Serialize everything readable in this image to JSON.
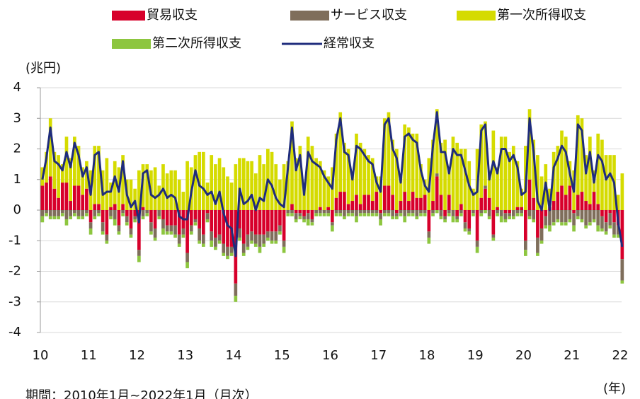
{
  "chart_data": {
    "type": "bar",
    "stacked": true,
    "y_unit": "(兆円)",
    "x_unit": "(年)",
    "note": "期間：2010年1月~2022年1月（月次）",
    "categories": [
      "10",
      null,
      null,
      null,
      null,
      null,
      null,
      null,
      null,
      null,
      null,
      null,
      "11",
      null,
      null,
      null,
      null,
      null,
      null,
      null,
      null,
      null,
      null,
      null,
      "12",
      null,
      null,
      null,
      null,
      null,
      null,
      null,
      null,
      null,
      null,
      null,
      "13",
      null,
      null,
      null,
      null,
      null,
      null,
      null,
      null,
      null,
      null,
      null,
      "14",
      null,
      null,
      null,
      null,
      null,
      null,
      null,
      null,
      null,
      null,
      null,
      "15",
      null,
      null,
      null,
      null,
      null,
      null,
      null,
      null,
      null,
      null,
      null,
      "16",
      null,
      null,
      null,
      null,
      null,
      null,
      null,
      null,
      null,
      null,
      null,
      "17",
      null,
      null,
      null,
      null,
      null,
      null,
      null,
      null,
      null,
      null,
      null,
      "18",
      null,
      null,
      null,
      null,
      null,
      null,
      null,
      null,
      null,
      null,
      null,
      "19",
      null,
      null,
      null,
      null,
      null,
      null,
      null,
      null,
      null,
      null,
      null,
      "20",
      null,
      null,
      null,
      null,
      null,
      null,
      null,
      null,
      null,
      null,
      null,
      "21",
      null,
      null,
      null,
      null,
      null,
      null,
      null,
      null,
      null,
      null,
      null,
      "22"
    ],
    "ylim": [
      -4,
      4
    ],
    "yticks": [
      -4,
      -3,
      -2,
      -1,
      0,
      1,
      2,
      3,
      4
    ],
    "grid": true,
    "series": [
      {
        "name": "貿易収支",
        "color": "#d7002b",
        "values": [
          0.8,
          0.9,
          1.1,
          0.7,
          0.4,
          0.9,
          0.9,
          0.3,
          0.8,
          0.8,
          0.5,
          0.7,
          -0.4,
          0.2,
          0.2,
          -0.4,
          -0.8,
          0.1,
          0.2,
          -0.5,
          0.2,
          -0.2,
          -0.6,
          -0.2,
          -1.3,
          0.1,
          0.0,
          -0.4,
          -0.6,
          0.0,
          -0.3,
          -0.5,
          -0.5,
          -0.5,
          -0.8,
          -0.6,
          -1.4,
          -0.5,
          -0.3,
          -0.6,
          -0.8,
          -0.1,
          -0.7,
          -0.9,
          -0.8,
          -1.1,
          -1.2,
          -1.2,
          -2.4,
          -0.6,
          -1.1,
          -0.8,
          -0.7,
          -0.8,
          -0.8,
          -0.8,
          -0.7,
          -0.7,
          -0.7,
          -0.5,
          -1.0,
          0.0,
          0.2,
          -0.1,
          -0.1,
          -0.2,
          -0.1,
          -0.3,
          0.0,
          0.1,
          0.0,
          0.1,
          -0.4,
          0.4,
          0.6,
          0.6,
          0.2,
          0.3,
          0.5,
          0.2,
          0.5,
          0.5,
          0.3,
          0.6,
          -0.1,
          0.8,
          0.8,
          0.5,
          -0.1,
          0.3,
          0.6,
          0.3,
          0.6,
          0.4,
          0.4,
          0.5,
          -0.7,
          0.3,
          1.1,
          0.5,
          -0.2,
          0.5,
          0.0,
          -0.2,
          0.2,
          -0.4,
          -0.6,
          0.0,
          -1.0,
          0.4,
          0.7,
          0.4,
          -0.8,
          0.1,
          0.0,
          -0.1,
          -0.1,
          0.0,
          0.1,
          0.1,
          -1.0,
          1.0,
          0.4,
          -0.9,
          -0.6,
          -0.2,
          0.1,
          0.3,
          0.6,
          0.8,
          0.5,
          0.8,
          -0.1,
          0.5,
          0.6,
          0.3,
          0.2,
          0.6,
          0.2,
          -0.2,
          -0.4,
          -0.1,
          -0.4,
          -0.5,
          -1.6
        ]
      },
      {
        "name": "サービス収支",
        "color": "#7f6e5b",
        "values": [
          -0.2,
          -0.1,
          -0.2,
          -0.2,
          -0.2,
          -0.1,
          -0.3,
          -0.2,
          -0.1,
          -0.2,
          -0.2,
          -0.1,
          -0.2,
          -0.2,
          -0.1,
          -0.3,
          -0.2,
          -0.2,
          -0.3,
          -0.2,
          -0.1,
          -0.2,
          -0.2,
          -0.1,
          -0.2,
          -0.2,
          -0.1,
          -0.3,
          -0.3,
          -0.2,
          -0.3,
          -0.2,
          -0.2,
          -0.3,
          -0.3,
          -0.2,
          -0.3,
          -0.2,
          -0.1,
          -0.4,
          -0.3,
          -0.2,
          -0.3,
          -0.3,
          -0.2,
          -0.3,
          -0.3,
          -0.2,
          -0.4,
          -0.3,
          -0.3,
          -0.4,
          -0.3,
          -0.3,
          -0.4,
          -0.3,
          -0.2,
          -0.3,
          -0.3,
          -0.2,
          -0.2,
          -0.1,
          -0.1,
          -0.2,
          -0.1,
          -0.1,
          -0.2,
          -0.1,
          -0.1,
          -0.1,
          -0.1,
          -0.1,
          -0.1,
          -0.1,
          -0.1,
          -0.2,
          -0.1,
          -0.1,
          -0.2,
          -0.1,
          -0.1,
          -0.1,
          -0.1,
          -0.1,
          -0.2,
          -0.1,
          -0.1,
          -0.2,
          -0.1,
          -0.1,
          -0.2,
          -0.1,
          -0.1,
          -0.2,
          -0.1,
          -0.1,
          -0.2,
          -0.1,
          0.1,
          -0.2,
          -0.1,
          -0.1,
          -0.2,
          -0.1,
          -0.1,
          -0.2,
          -0.1,
          -0.1,
          -0.2,
          -0.1,
          0.1,
          -0.2,
          -0.1,
          -0.1,
          -0.2,
          -0.2,
          -0.1,
          -0.2,
          -0.1,
          -0.1,
          -0.3,
          -0.2,
          -0.3,
          -0.5,
          -0.4,
          -0.3,
          -0.5,
          -0.4,
          -0.3,
          -0.4,
          -0.4,
          -0.3,
          -0.4,
          -0.2,
          -0.3,
          -0.5,
          -0.4,
          -0.3,
          -0.5,
          -0.4,
          -0.3,
          -0.4,
          -0.4,
          -0.3,
          -0.7
        ]
      },
      {
        "name": "第一次所得収支",
        "color": "#d5db00",
        "values": [
          0.6,
          1.0,
          1.9,
          1.2,
          1.4,
          0.6,
          1.5,
          1.4,
          1.6,
          1.3,
          0.9,
          0.9,
          1.3,
          1.9,
          1.9,
          1.3,
          1.7,
          0.8,
          1.4,
          1.4,
          1.6,
          1.0,
          1.0,
          0.7,
          1.3,
          1.4,
          1.5,
          1.3,
          1.4,
          0.8,
          1.5,
          1.2,
          1.3,
          1.3,
          1.0,
          0.6,
          1.6,
          1.4,
          1.8,
          1.9,
          1.9,
          0.9,
          1.8,
          1.5,
          1.7,
          1.4,
          1.1,
          0.9,
          1.5,
          1.7,
          1.7,
          1.6,
          1.6,
          1.2,
          1.8,
          1.5,
          2.0,
          1.9,
          1.5,
          1.0,
          1.5,
          1.6,
          2.7,
          1.7,
          2.1,
          0.9,
          2.4,
          2.1,
          1.7,
          1.5,
          1.3,
          1.0,
          1.4,
          2.1,
          2.6,
          1.6,
          1.8,
          0.9,
          2.0,
          2.0,
          1.5,
          1.3,
          1.4,
          0.5,
          1.1,
          2.2,
          2.4,
          1.8,
          2.0,
          0.8,
          2.2,
          2.4,
          1.9,
          2.1,
          1.1,
          0.5,
          1.7,
          2.0,
          2.1,
          1.7,
          2.3,
          0.9,
          2.4,
          2.2,
          1.8,
          2.0,
          1.6,
          0.7,
          2.0,
          2.4,
          2.1,
          0.9,
          2.6,
          1.3,
          2.4,
          2.4,
          1.9,
          2.1,
          1.5,
          0.6,
          2.1,
          2.3,
          1.9,
          1.8,
          1.1,
          1.5,
          0.6,
          1.6,
          1.5,
          1.8,
          1.9,
          0.8,
          1.3,
          2.6,
          2.4,
          1.5,
          2.2,
          0.7,
          2.3,
          2.3,
          1.8,
          1.8,
          1.8,
          0.5,
          1.2
        ]
      },
      {
        "name": "第二次所得収支",
        "color": "#8dc63f",
        "values": [
          -0.2,
          -0.1,
          -0.1,
          -0.1,
          -0.1,
          -0.1,
          -0.2,
          -0.1,
          -0.1,
          -0.1,
          -0.1,
          -0.1,
          -0.2,
          -0.1,
          -0.1,
          -0.1,
          -0.1,
          -0.1,
          -0.2,
          -0.1,
          -0.1,
          -0.1,
          -0.1,
          -0.1,
          -0.2,
          -0.1,
          -0.1,
          -0.1,
          -0.1,
          -0.1,
          -0.2,
          -0.1,
          -0.1,
          -0.1,
          -0.1,
          -0.1,
          -0.2,
          -0.1,
          -0.1,
          -0.1,
          -0.1,
          -0.1,
          -0.2,
          -0.1,
          -0.1,
          -0.1,
          -0.1,
          -0.1,
          -0.2,
          -0.1,
          -0.1,
          -0.1,
          -0.1,
          -0.1,
          -0.2,
          -0.1,
          -0.1,
          -0.1,
          -0.1,
          -0.1,
          -0.2,
          -0.1,
          -0.1,
          -0.1,
          -0.1,
          -0.1,
          -0.2,
          -0.1,
          -0.1,
          -0.1,
          -0.1,
          -0.1,
          -0.2,
          -0.1,
          -0.1,
          -0.1,
          -0.1,
          -0.1,
          -0.2,
          -0.1,
          -0.1,
          -0.1,
          -0.1,
          -0.1,
          -0.2,
          -0.1,
          -0.1,
          -0.1,
          -0.1,
          -0.1,
          -0.2,
          -0.1,
          -0.1,
          -0.1,
          -0.1,
          -0.1,
          -0.2,
          -0.1,
          -0.1,
          -0.1,
          -0.1,
          -0.1,
          -0.2,
          -0.1,
          -0.1,
          -0.1,
          -0.1,
          -0.1,
          -0.2,
          -0.1,
          -0.1,
          -0.1,
          -0.1,
          -0.1,
          -0.2,
          -0.1,
          -0.1,
          -0.1,
          -0.1,
          -0.1,
          -0.2,
          -0.1,
          -0.1,
          -0.1,
          -0.1,
          -0.1,
          -0.2,
          -0.1,
          -0.1,
          -0.1,
          -0.1,
          -0.1,
          -0.2,
          -0.1,
          -0.1,
          -0.1,
          -0.1,
          -0.1,
          -0.2,
          -0.1,
          -0.1,
          -0.1,
          -0.1,
          -0.1,
          -0.1
        ]
      },
      {
        "name": "経常収支",
        "color": "#1f2c7c",
        "type": "line",
        "values": [
          1.0,
          1.7,
          2.7,
          1.6,
          1.5,
          1.3,
          1.9,
          1.4,
          2.2,
          1.8,
          1.1,
          1.4,
          0.5,
          1.8,
          1.9,
          0.5,
          0.6,
          0.6,
          1.1,
          0.6,
          1.6,
          0.5,
          0.1,
          0.3,
          -0.4,
          1.2,
          1.3,
          0.5,
          0.4,
          0.5,
          0.7,
          0.4,
          0.5,
          0.4,
          -0.2,
          -0.3,
          -0.3,
          0.6,
          1.3,
          0.8,
          0.7,
          0.5,
          0.6,
          0.2,
          0.6,
          -0.1,
          -0.5,
          -0.6,
          -1.5,
          0.7,
          0.2,
          0.3,
          0.5,
          0.0,
          0.4,
          0.3,
          1.0,
          0.8,
          0.4,
          0.2,
          0.1,
          1.4,
          2.7,
          1.3,
          1.8,
          0.5,
          1.9,
          1.6,
          1.5,
          1.4,
          1.1,
          0.9,
          0.7,
          2.3,
          3.0,
          1.9,
          1.8,
          1.0,
          2.1,
          2.0,
          1.8,
          1.6,
          1.5,
          0.9,
          0.6,
          2.8,
          3.0,
          2.0,
          1.7,
          0.9,
          2.4,
          2.5,
          2.3,
          2.2,
          1.3,
          0.8,
          0.6,
          2.1,
          3.2,
          1.9,
          1.9,
          1.2,
          2.0,
          1.8,
          1.8,
          1.3,
          0.8,
          0.5,
          0.6,
          2.6,
          2.8,
          1.0,
          1.6,
          1.2,
          2.0,
          2.0,
          1.6,
          1.8,
          1.4,
          0.5,
          0.6,
          3.0,
          1.9,
          0.3,
          0.0,
          0.9,
          0.0,
          1.4,
          1.7,
          2.1,
          1.9,
          1.2,
          0.6,
          2.8,
          2.6,
          1.2,
          1.9,
          0.9,
          1.8,
          1.6,
          1.0,
          1.2,
          0.9,
          -0.4,
          -1.2
        ]
      }
    ]
  }
}
